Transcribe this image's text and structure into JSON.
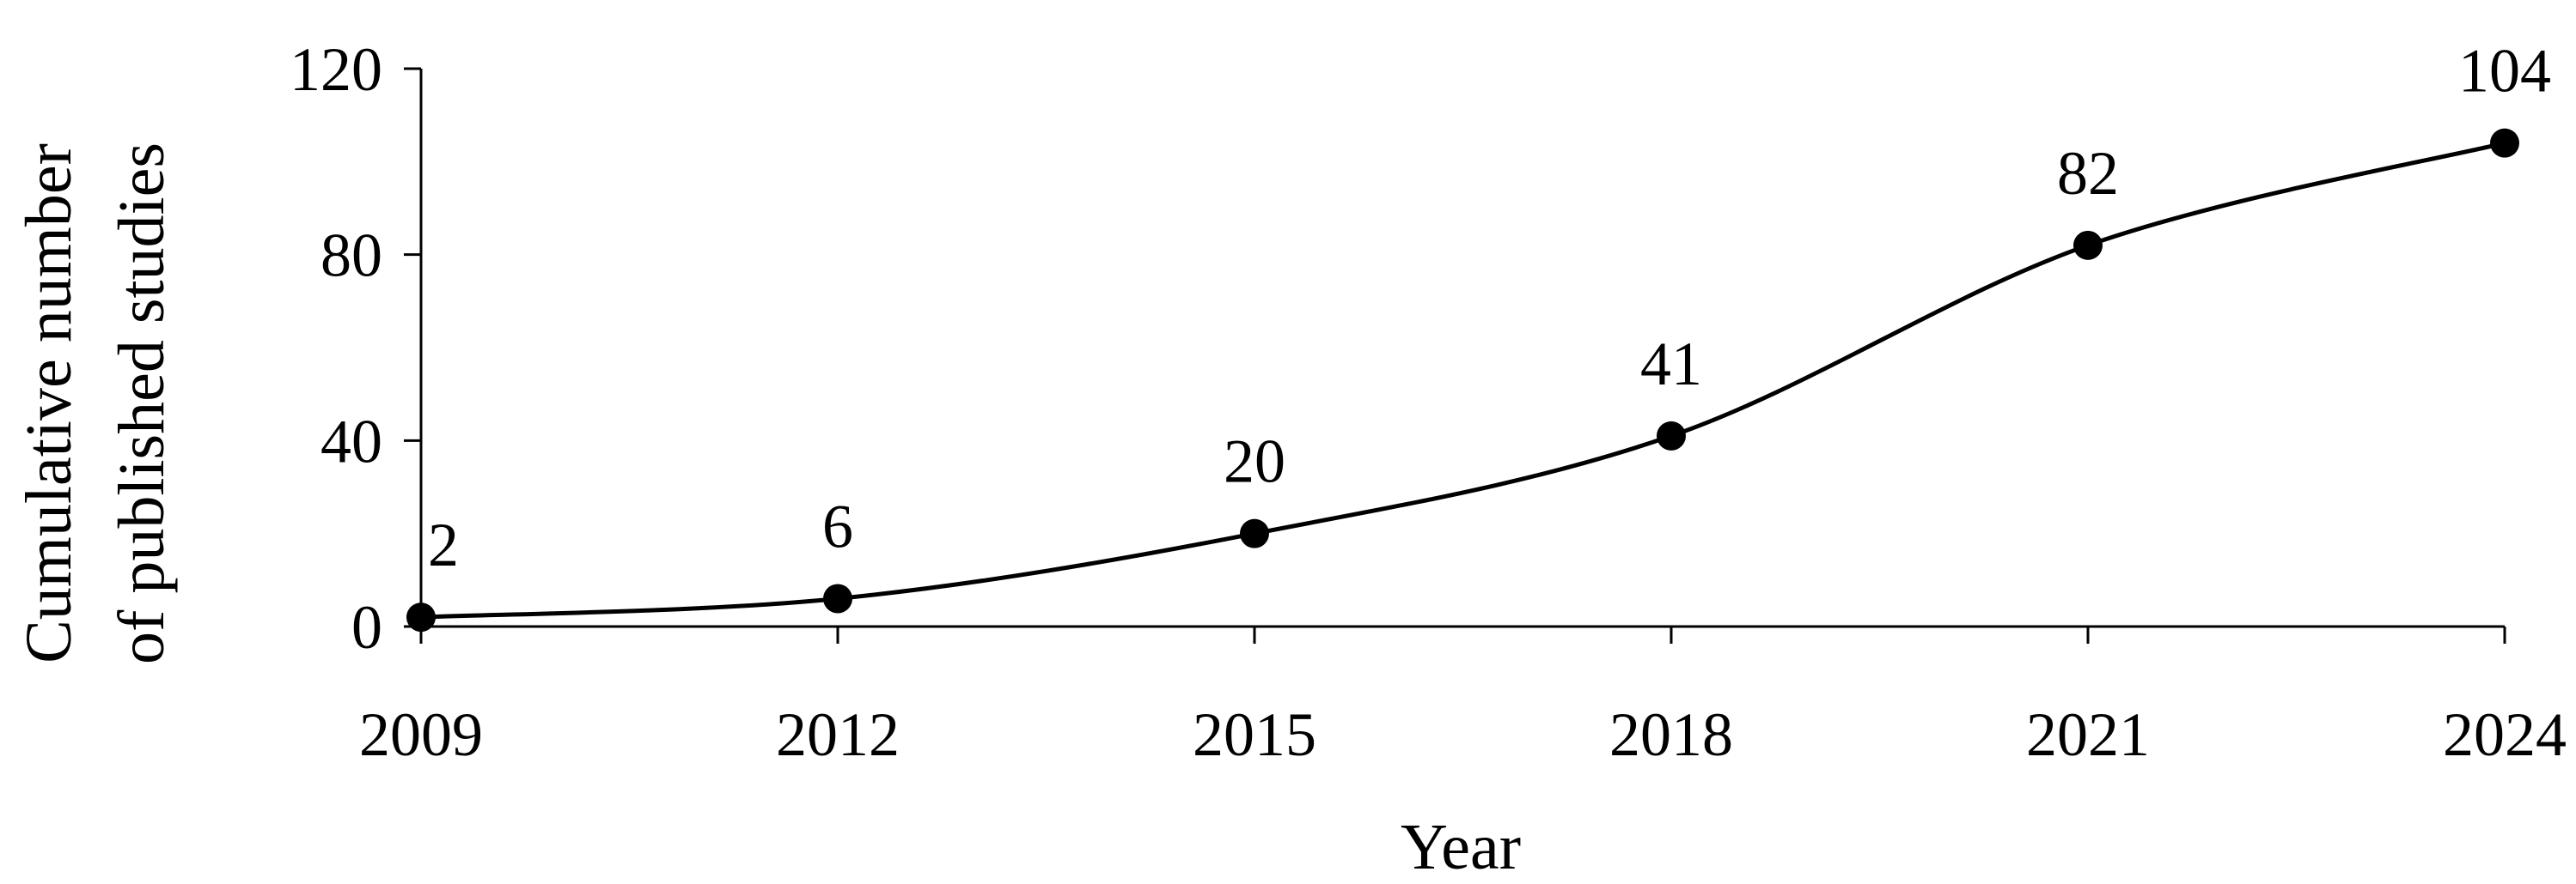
{
  "chart_data": {
    "type": "line",
    "title": "",
    "xlabel": "Year",
    "ylabel_lines": [
      "Cumulative number",
      "of published studies"
    ],
    "x": [
      2009,
      2012,
      2015,
      2018,
      2021,
      2024
    ],
    "x_tick_labels": [
      "2009",
      "2012",
      "2015",
      "2018",
      "2021",
      "2024"
    ],
    "y_ticks": [
      0,
      40,
      80,
      120
    ],
    "y_tick_labels": [
      "0",
      "40",
      "80",
      "120"
    ],
    "xlim": [
      2009,
      2024
    ],
    "ylim": [
      0,
      120
    ],
    "grid": false,
    "legend": "none",
    "series": [
      {
        "values": [
          2,
          6,
          20,
          41,
          82,
          104
        ],
        "data_labels": [
          "2",
          "6",
          "20",
          "41",
          "82",
          "104"
        ],
        "color": "#000000",
        "marker": "circle",
        "smooth": true
      }
    ]
  }
}
